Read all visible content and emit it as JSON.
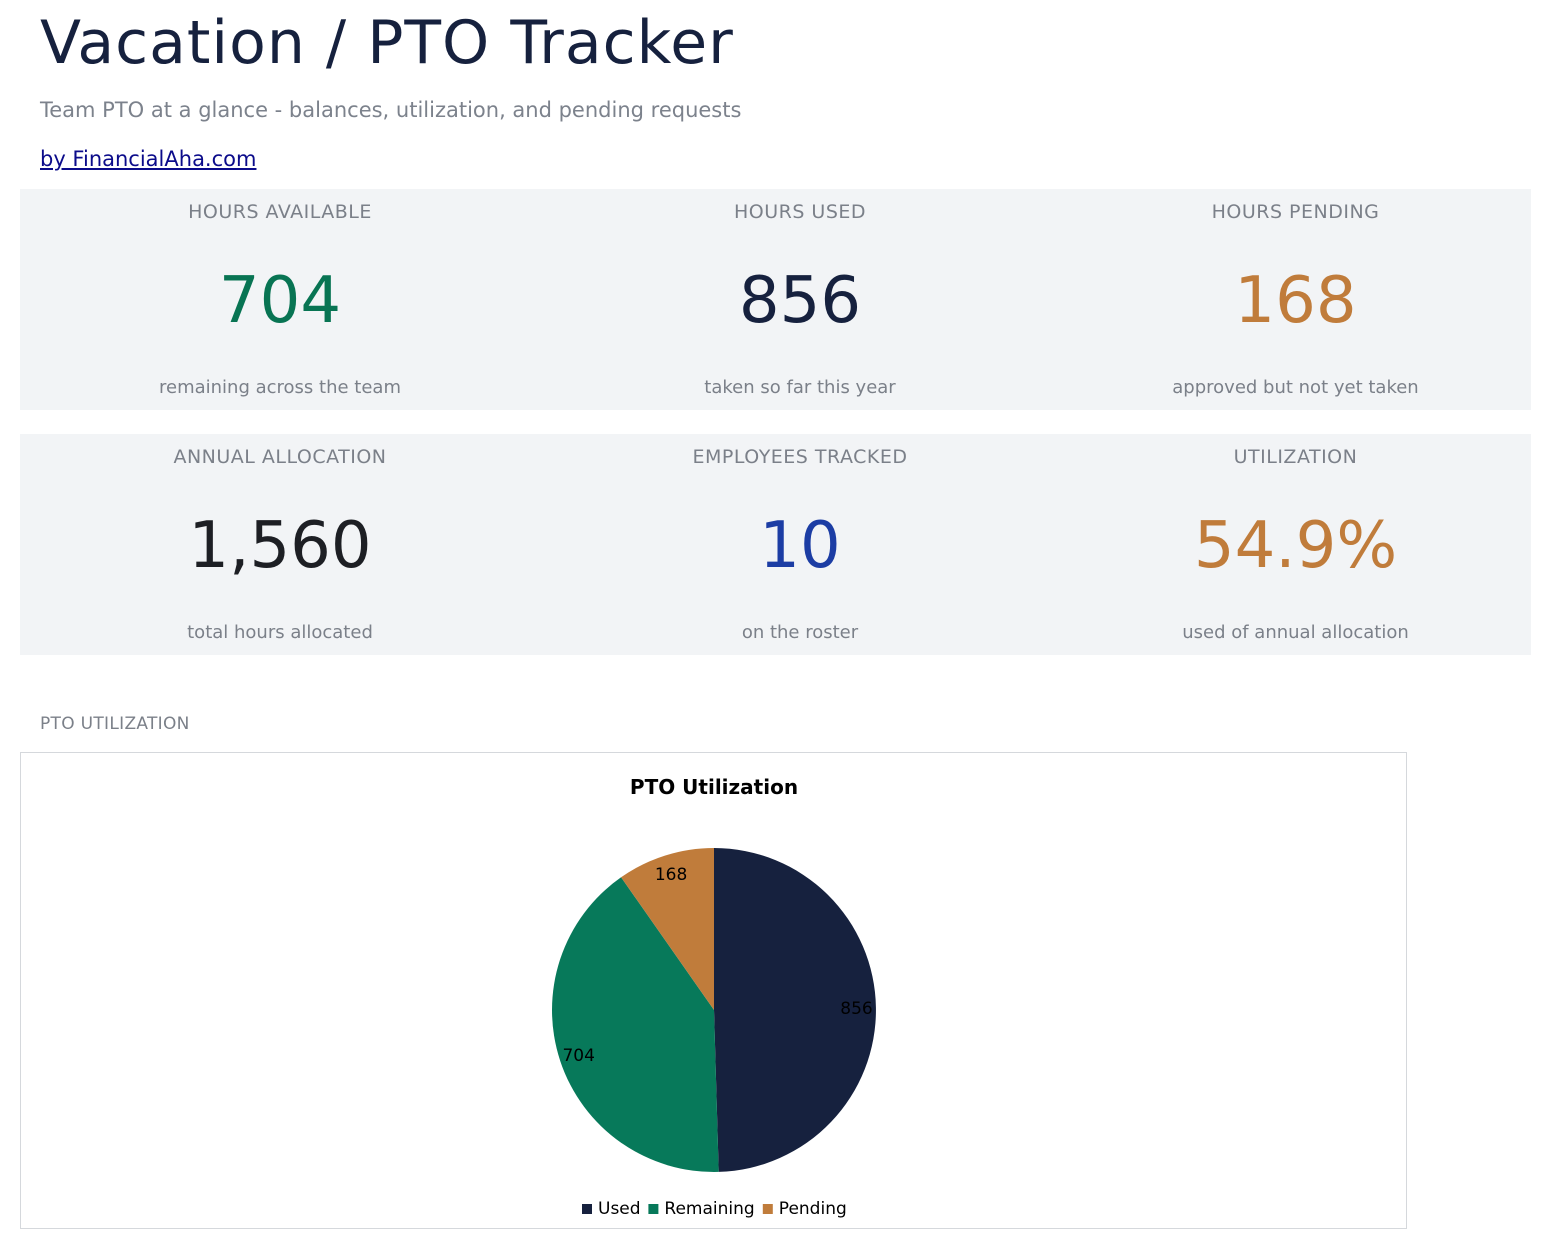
{
  "header": {
    "title": "Vacation / PTO Tracker",
    "subtitle": "Team PTO at a glance - balances, utilization, and pending requests",
    "byline": "by FinancialAha.com"
  },
  "kpis": [
    {
      "label": "HOURS AVAILABLE",
      "value": "704",
      "note": "remaining across the team",
      "color": "#087453"
    },
    {
      "label": "HOURS USED",
      "value": "856",
      "note": "taken so far this year",
      "color": "#16213e"
    },
    {
      "label": "HOURS PENDING",
      "value": "168",
      "note": "approved but not yet taken",
      "color": "#c07c3b"
    },
    {
      "label": "ANNUAL ALLOCATION",
      "value": "1,560",
      "note": "total hours allocated",
      "color": "#1d1f24"
    },
    {
      "label": "EMPLOYEES TRACKED",
      "value": "10",
      "note": "on the roster",
      "color": "#1c3da4"
    },
    {
      "label": "UTILIZATION",
      "value": "54.9%",
      "note": "used of annual allocation",
      "color": "#c07c3b"
    }
  ],
  "section": {
    "label": "PTO UTILIZATION"
  },
  "chart_data": {
    "type": "pie",
    "title": "PTO Utilization",
    "categories": [
      "Used",
      "Remaining",
      "Pending"
    ],
    "values": [
      856,
      704,
      168
    ],
    "colors": [
      "#16213e",
      "#07795a",
      "#c07c3b"
    ],
    "data_labels": [
      "856",
      "704",
      "168"
    ],
    "legend_position": "bottom",
    "start_angle": "12 o'clock",
    "direction": "clockwise"
  }
}
